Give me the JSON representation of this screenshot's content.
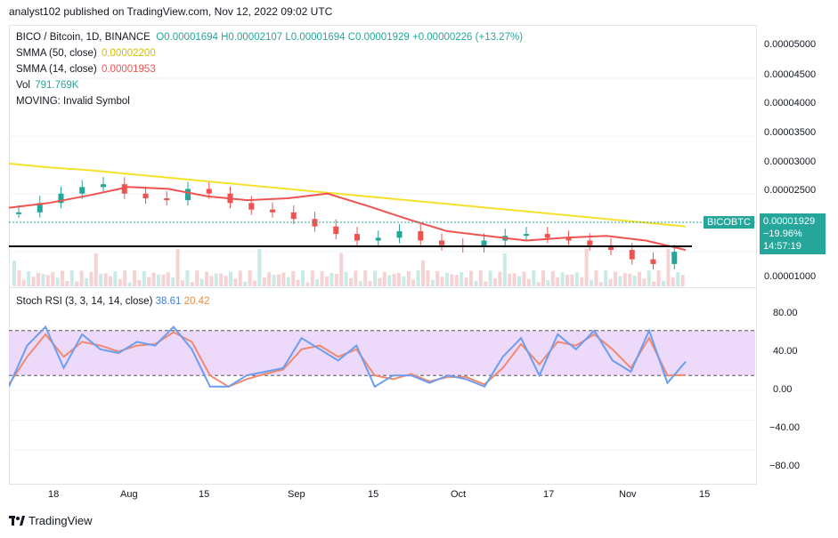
{
  "header": {
    "publish_line": "analyst102 published on TradingView.com, Nov 12, 2022 09:02 UTC"
  },
  "legend": {
    "title": "BICO / Bitcoin, 1D, BINANCE",
    "ohlc": "O0.00001694 H0.00002107 L0.00001694 C0.00001929 +0.00000226 (+13.27%)",
    "sma50_label": "SMMA (50, close)",
    "sma50_value": "0.00002200",
    "sma14_label": "SMMA (14, close)",
    "sma14_value": "0.00001953",
    "vol_label": "Vol",
    "vol_value": "791.769K",
    "moving_label": "MOVING: Invalid Symbol"
  },
  "price_tag": {
    "symbol": "BICOBTC",
    "price": "0.00001929",
    "change": "−19.96%",
    "countdown": "14:57:19"
  },
  "stoch": {
    "label": "Stoch RSI (3, 3, 14, 14, close)",
    "k_value": "38.61",
    "d_value": "20.42"
  },
  "footer": {
    "brand": "TradingView"
  },
  "colors": {
    "up": "#26a69a",
    "down": "#ef5350",
    "sma50": "#f5e12b",
    "sma14": "#ef5350",
    "k_line": "#6b9df0",
    "d_line": "#f08a70",
    "rsi_band": "#e5c9f7"
  },
  "chart_data": [
    {
      "type": "candlestick",
      "y_ticks": [
        "0.00005000",
        "0.00004500",
        "0.00004000",
        "0.00003500",
        "0.00003000",
        "0.00002500",
        "0.00001000"
      ],
      "x_ticks": [
        "18",
        "Aug",
        "15",
        "Sep",
        "15",
        "Oct",
        "17",
        "Nov",
        "15"
      ],
      "ylim": [
        9.5e-06,
        5.3e-06
      ],
      "sma50": [
        2.87e-05,
        2.83e-05,
        2.8e-05,
        2.76e-05,
        2.72e-05,
        2.68e-05,
        2.64e-05,
        2.6e-05,
        2.56e-05,
        2.52e-05,
        2.48e-05,
        2.44e-05,
        2.4e-05,
        2.36e-05,
        2.32e-05,
        2.28e-05,
        2.24e-05,
        2.2e-05
      ],
      "sma14": [
        2.4e-05,
        2.45e-05,
        2.53e-05,
        2.62e-05,
        2.6e-05,
        2.52e-05,
        2.48e-05,
        2.5e-05,
        2.55e-05,
        2.42e-05,
        2.28e-05,
        2.15e-05,
        2.1e-05,
        2.05e-05,
        2.08e-05,
        2.1e-05,
        2.05e-05,
        1.95e-05
      ],
      "close": [
        2.35e-05,
        2.45e-05,
        2.55e-05,
        2.62e-05,
        2.65e-05,
        2.55e-05,
        2.5e-05,
        2.48e-05,
        2.6e-05,
        2.55e-05,
        2.45e-05,
        2.38e-05,
        2.35e-05,
        2.28e-05,
        2.2e-05,
        2.12e-05,
        2.05e-05,
        2.08e-05,
        2.15e-05,
        2.05e-05,
        2e-05,
        1.98e-05,
        2.05e-05,
        2.1e-05,
        2.12e-05,
        2.08e-05,
        2.05e-05,
        2e-05,
        1.95e-05,
        1.85e-05,
        1.8e-05,
        1.93e-05
      ]
    },
    {
      "type": "line",
      "title": "Stoch RSI (3, 3, 14, 14, close)",
      "y_ticks": [
        "80.00",
        "40.00",
        "0.00",
        "−40.00",
        "−80.00"
      ],
      "ylim": [
        -100,
        100
      ],
      "bands": [
        20,
        80
      ],
      "series": [
        {
          "name": "K",
          "values": [
            5,
            60,
            85,
            30,
            75,
            55,
            50,
            65,
            60,
            85,
            55,
            5,
            5,
            20,
            25,
            30,
            70,
            55,
            40,
            60,
            5,
            20,
            20,
            10,
            20,
            15,
            5,
            45,
            70,
            20,
            75,
            55,
            80,
            40,
            25,
            80,
            10,
            38.61
          ]
        },
        {
          "name": "D",
          "values": [
            8,
            45,
            75,
            45,
            65,
            60,
            52,
            60,
            62,
            78,
            65,
            20,
            5,
            15,
            22,
            28,
            55,
            60,
            45,
            55,
            20,
            15,
            22,
            12,
            18,
            18,
            8,
            30,
            62,
            35,
            65,
            60,
            75,
            55,
            30,
            70,
            20,
            20.42
          ]
        }
      ]
    }
  ]
}
